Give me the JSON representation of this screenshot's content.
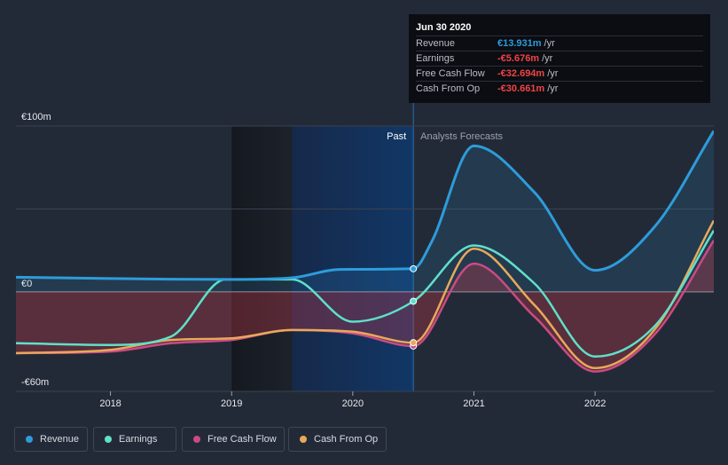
{
  "tooltip": {
    "date": "Jun 30 2020",
    "rows": [
      {
        "label": "Revenue",
        "value": "€13.931m",
        "unit": "/yr",
        "color": "#2d9cdb"
      },
      {
        "label": "Earnings",
        "value": "-€5.676m",
        "unit": "/yr",
        "color": "#ef4444"
      },
      {
        "label": "Free Cash Flow",
        "value": "-€32.694m",
        "unit": "/yr",
        "color": "#ef4444"
      },
      {
        "label": "Cash From Op",
        "value": "-€30.661m",
        "unit": "/yr",
        "color": "#ef4444"
      }
    ]
  },
  "legend": [
    {
      "label": "Revenue",
      "color": "#2d9cdb"
    },
    {
      "label": "Earnings",
      "color": "#5fe0c9"
    },
    {
      "label": "Free Cash Flow",
      "color": "#cc4a84"
    },
    {
      "label": "Cash From Op",
      "color": "#e7a95a"
    }
  ],
  "chart_data": {
    "type": "line",
    "title": "",
    "xlabel": "",
    "ylabel": "",
    "ylim": [
      -60,
      100
    ],
    "y_tick_labels": [
      "€100m",
      "€0",
      "-€60m"
    ],
    "x_ticks": [
      2018,
      2019,
      2020,
      2021,
      2022
    ],
    "xlim": [
      2017.22,
      2022.98
    ],
    "divider_year": 2020.5,
    "past_label": "Past",
    "forecast_label": "Analysts Forecasts",
    "colors": {
      "revenue": "#2d9cdb",
      "earnings": "#5fe0c9",
      "fcf": "#cc4a84",
      "cfo": "#e7a95a"
    },
    "series": [
      {
        "name": "Revenue",
        "key": "revenue",
        "x": [
          2017.22,
          2018.0,
          2019.0,
          2019.5,
          2019.9,
          2020.5,
          2020.65,
          2021.0,
          2021.5,
          2022.0,
          2022.5,
          2022.98
        ],
        "values": [
          8.8,
          8.0,
          7.5,
          8.5,
          13.5,
          13.931,
          30,
          88,
          60,
          13,
          40,
          97
        ]
      },
      {
        "name": "Earnings",
        "key": "earnings",
        "x": [
          2017.22,
          2018.0,
          2018.5,
          2018.95,
          2019.5,
          2020.0,
          2020.5,
          2021.0,
          2021.5,
          2022.0,
          2022.5,
          2022.98
        ],
        "values": [
          -31,
          -32,
          -27,
          7.5,
          7.5,
          -18,
          -5.676,
          28,
          5,
          -39,
          -20,
          37
        ]
      },
      {
        "name": "Free Cash Flow",
        "key": "fcf",
        "x": [
          2017.22,
          2018.0,
          2018.5,
          2019.0,
          2019.5,
          2020.0,
          2020.5,
          2021.0,
          2021.5,
          2022.0,
          2022.5,
          2022.98
        ],
        "values": [
          -37,
          -36,
          -31,
          -29,
          -23,
          -25,
          -32.694,
          17,
          -15,
          -48,
          -25,
          31
        ]
      },
      {
        "name": "Cash From Op",
        "key": "cfo",
        "x": [
          2017.22,
          2018.0,
          2018.5,
          2019.0,
          2019.5,
          2020.0,
          2020.5,
          2021.0,
          2021.5,
          2022.0,
          2022.5,
          2022.98
        ],
        "values": [
          -37,
          -35,
          -29,
          -28,
          -23,
          -24,
          -30.661,
          26,
          -8,
          -46,
          -22,
          43
        ]
      }
    ]
  }
}
